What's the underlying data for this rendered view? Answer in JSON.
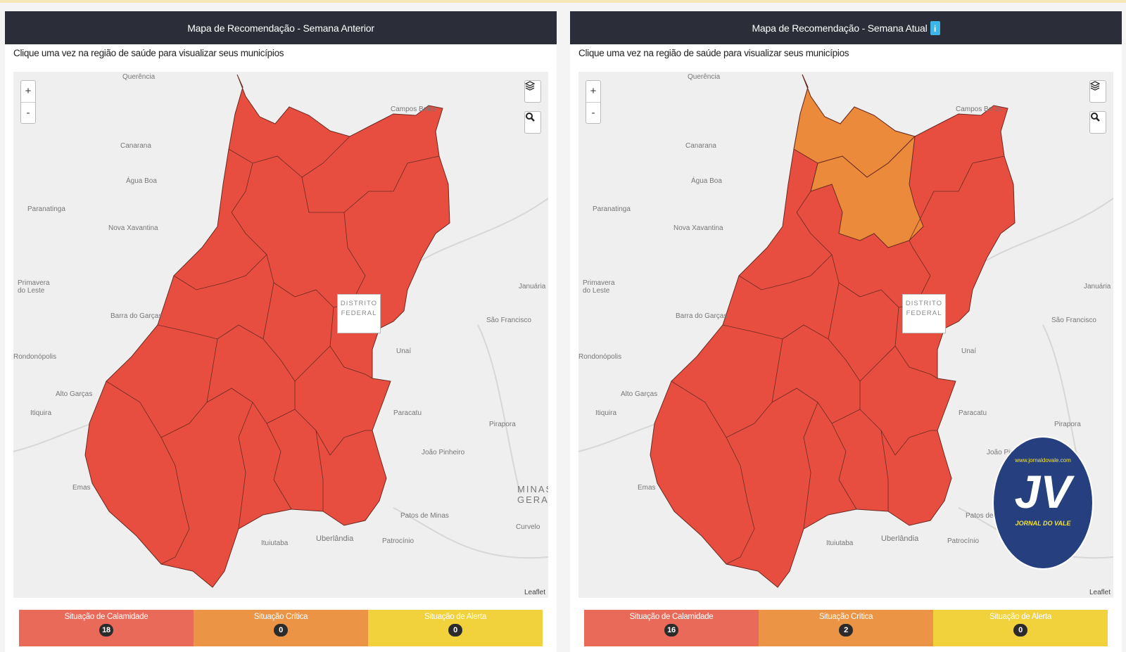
{
  "panels": [
    {
      "header": "Mapa de Recomendação - Semana Anterior",
      "instruction": "Clique uma vez na região de saúde para visualizar seus municípios",
      "zoom_in": "+",
      "zoom_out": "-",
      "df_label_line1": "DISTRITO",
      "df_label_line2": "FEDERAL",
      "attribution": "Leaflet",
      "legend": [
        {
          "label": "Situação de Calamidade",
          "count": "18",
          "color": "#ea6a5a"
        },
        {
          "label": "Situação Crítica",
          "count": "0",
          "color": "#ec9445"
        },
        {
          "label": "Situação de Alerta",
          "count": "0",
          "color": "#f1d13c"
        }
      ]
    },
    {
      "header": "Mapa de Recomendação - Semana Atual",
      "info_badge": "i",
      "instruction": "Clique uma vez na região de saúde para visualizar seus municípios",
      "zoom_in": "+",
      "zoom_out": "-",
      "df_label_line1": "DISTRITO",
      "df_label_line2": "FEDERAL",
      "attribution": "Leaflet",
      "legend": [
        {
          "label": "Situação de Calamidade",
          "count": "16",
          "color": "#ea6a5a"
        },
        {
          "label": "Situação Crítica",
          "count": "2",
          "color": "#ec9445"
        },
        {
          "label": "Situação de Alerta",
          "count": "0",
          "color": "#f1d13c"
        }
      ],
      "watermark": {
        "url": "www.jornaldovale.com",
        "letters": "JV",
        "name": "JORNAL DO VALE"
      }
    }
  ],
  "map_places": [
    "Querência",
    "Canarana",
    "Água Boa",
    "Paranatinga",
    "Nova Xavantina",
    "Primavera do Leste",
    "Barra do Garças",
    "Rondonópolis",
    "Alto Garças",
    "Itiquira",
    "Emas",
    "Campos Belos",
    "Januária",
    "São Francisco",
    "Unaí",
    "Paracatu",
    "Pirapora",
    "João Pinheiro",
    "MINAS GERAIS",
    "Patos de Minas",
    "Curvelo",
    "Ituiutaba",
    "Uberlândia",
    "Patrocínio"
  ],
  "map_colors": {
    "calamidade": "#e84e3f",
    "critica": "#ea8a3a",
    "background": "#efefef",
    "header": "#2b2e38"
  },
  "icons": [
    "zoom-in-icon",
    "zoom-out-icon",
    "layers-icon",
    "search-icon",
    "info-icon"
  ]
}
